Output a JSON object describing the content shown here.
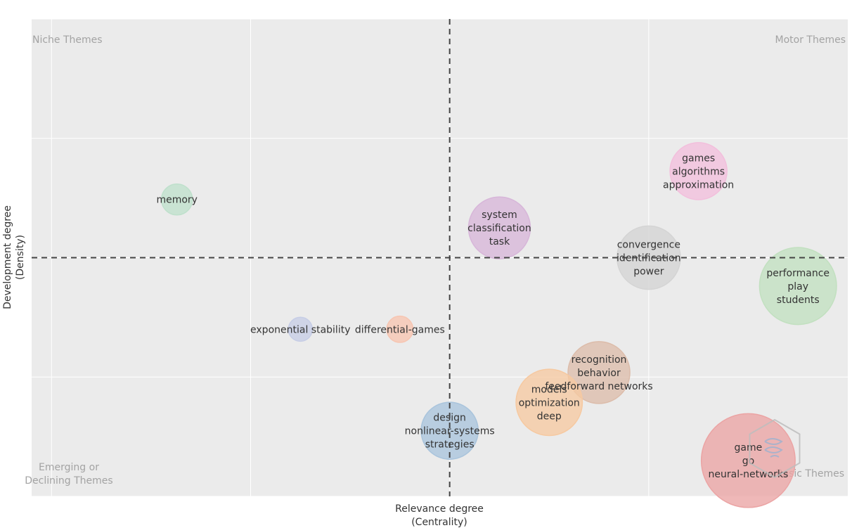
{
  "chart_data": {
    "type": "scatter",
    "subtype": "bubble",
    "xlabel": [
      "Relevance degree",
      "(Centrality)"
    ],
    "ylabel": [
      "Development degree",
      "(Density)"
    ],
    "xlim": [
      -1.05,
      1.0
    ],
    "ylim": [
      -0.8,
      0.8
    ],
    "grid": true,
    "reference_lines": {
      "x": 0.0,
      "y": 0.0,
      "style": "dashed"
    },
    "quadrant_labels": {
      "top_left": [
        "Niche Themes"
      ],
      "top_right": [
        "Motor Themes"
      ],
      "bottom_left": [
        "Emerging or",
        "Declining Themes"
      ],
      "bottom_right": [
        "Basic Themes"
      ]
    },
    "points": [
      {
        "labels": [
          "memory"
        ],
        "x": -0.685,
        "y": 0.195,
        "size": 0.25,
        "color": "#bfe0cc"
      },
      {
        "labels": [
          "system",
          "classification",
          "task"
        ],
        "x": 0.125,
        "y": 0.1,
        "size": 1.0,
        "color": "#d7b6d9"
      },
      {
        "labels": [
          "games",
          "algorithms",
          "approximation"
        ],
        "x": 0.625,
        "y": 0.29,
        "size": 0.85,
        "color": "#f2bfdc"
      },
      {
        "labels": [
          "convergence",
          "identification",
          "power"
        ],
        "x": 0.5,
        "y": 0.0,
        "size": 1.05,
        "color": "#d4d4d4"
      },
      {
        "labels": [
          "performance",
          "play",
          "students"
        ],
        "x": 0.875,
        "y": -0.095,
        "size": 1.55,
        "color": "#c2e0c0"
      },
      {
        "labels": [
          "exponential stability"
        ],
        "x": -0.375,
        "y": -0.24,
        "size": 0.15,
        "color": "#c6cde6"
      },
      {
        "labels": [
          "differential-games"
        ],
        "x": -0.125,
        "y": -0.24,
        "size": 0.18,
        "color": "#f7c5b1"
      },
      {
        "labels": [
          "recognition",
          "behavior",
          "feedforward networks"
        ],
        "x": 0.375,
        "y": -0.385,
        "size": 1.0,
        "color": "#dcbcaa"
      },
      {
        "labels": [
          "models",
          "optimization",
          "deep"
        ],
        "x": 0.25,
        "y": -0.485,
        "size": 1.15,
        "color": "#f6c9a1"
      },
      {
        "labels": [
          "design",
          "nonlinear-systems",
          "strategies"
        ],
        "x": 0.0,
        "y": -0.58,
        "size": 0.85,
        "color": "#a9c4dc"
      },
      {
        "labels": [
          "game",
          "go",
          "neural-networks"
        ],
        "x": 0.75,
        "y": -0.68,
        "size": 2.3,
        "color": "#eba4a4"
      }
    ],
    "watermark": "logo-hexagon"
  }
}
